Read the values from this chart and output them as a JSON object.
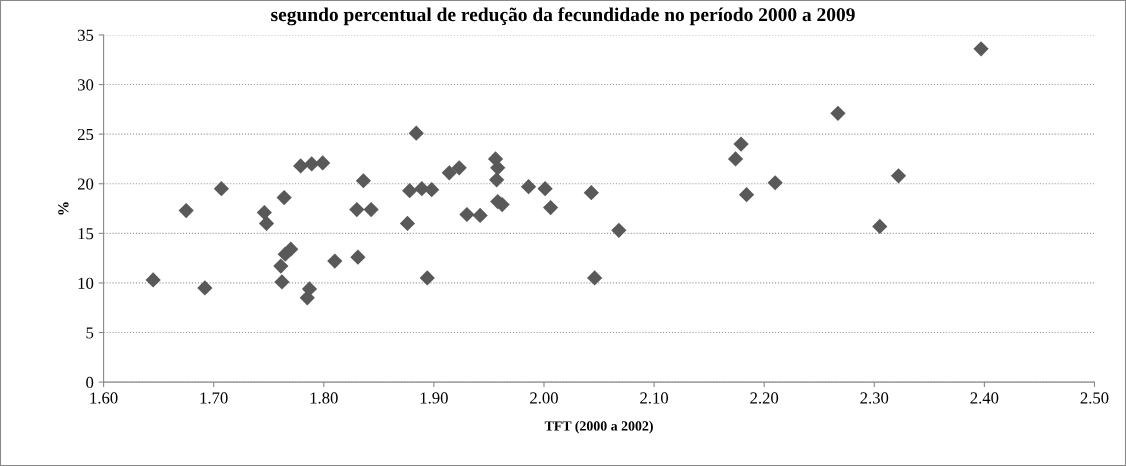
{
  "chart_data": {
    "type": "scatter",
    "title": "segundo percentual de redução da fecundidade no período 2000 a 2009",
    "xlabel": "TFT (2000 a 2002)",
    "ylabel": "%",
    "x": [
      1.645,
      1.675,
      1.692,
      1.707,
      1.746,
      1.748,
      1.764,
      1.761,
      1.765,
      1.77,
      1.762,
      1.779,
      1.789,
      1.799,
      1.785,
      1.787,
      1.81,
      1.83,
      1.831,
      1.836,
      1.843,
      1.876,
      1.878,
      1.884,
      1.889,
      1.894,
      1.898,
      1.914,
      1.923,
      1.93,
      1.942,
      1.956,
      1.958,
      1.957,
      1.958,
      1.962,
      1.986,
      2.001,
      2.006,
      2.043,
      2.046,
      2.068,
      2.174,
      2.179,
      2.184,
      2.21,
      2.267,
      2.305,
      2.322,
      2.397
    ],
    "values": [
      10.3,
      17.3,
      9.5,
      19.5,
      17.1,
      16.0,
      18.6,
      11.7,
      12.9,
      13.4,
      10.1,
      21.8,
      22.0,
      22.1,
      8.5,
      9.4,
      12.2,
      17.4,
      12.6,
      20.3,
      17.4,
      16.0,
      19.3,
      25.1,
      19.5,
      10.5,
      19.4,
      21.1,
      21.6,
      16.9,
      16.8,
      22.5,
      21.6,
      20.4,
      18.2,
      17.9,
      19.7,
      19.5,
      17.6,
      19.1,
      10.5,
      15.3,
      22.5,
      24.0,
      18.9,
      20.1,
      27.1,
      15.7,
      20.8,
      33.6
    ],
    "color": "#595959",
    "marker": "diamond",
    "grid": "y",
    "xlim": [
      1.6,
      2.5
    ],
    "xticks": [
      {
        "value": 1.6,
        "label": "1.60"
      },
      {
        "value": 1.7,
        "label": "1.70"
      },
      {
        "value": 1.8,
        "label": "1.80"
      },
      {
        "value": 1.9,
        "label": "1.90"
      },
      {
        "value": 2.0,
        "label": "2.00"
      },
      {
        "value": 2.1,
        "label": "2.10"
      },
      {
        "value": 2.2,
        "label": "2.20"
      },
      {
        "value": 2.3,
        "label": "2.30"
      },
      {
        "value": 2.4,
        "label": "2.40"
      },
      {
        "value": 2.5,
        "label": "2.50"
      }
    ],
    "ylim": [
      0,
      35
    ],
    "yticks": [
      0,
      5,
      10,
      15,
      20,
      25,
      30,
      35
    ]
  }
}
